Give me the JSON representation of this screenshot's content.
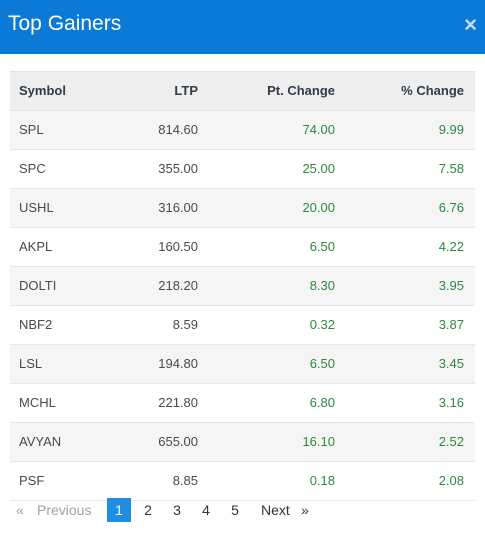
{
  "header": {
    "title": "Top Gainers",
    "close_icon": "×"
  },
  "table": {
    "columns": [
      "Symbol",
      "LTP",
      "Pt. Change",
      "% Change"
    ],
    "rows": [
      {
        "symbol": "SPL",
        "ltp": "814.60",
        "pt_change": "74.00",
        "pct_change": "9.99"
      },
      {
        "symbol": "SPC",
        "ltp": "355.00",
        "pt_change": "25.00",
        "pct_change": "7.58"
      },
      {
        "symbol": "USHL",
        "ltp": "316.00",
        "pt_change": "20.00",
        "pct_change": "6.76"
      },
      {
        "symbol": "AKPL",
        "ltp": "160.50",
        "pt_change": "6.50",
        "pct_change": "4.22"
      },
      {
        "symbol": "DOLTI",
        "ltp": "218.20",
        "pt_change": "8.30",
        "pct_change": "3.95"
      },
      {
        "symbol": "NBF2",
        "ltp": "8.59",
        "pt_change": "0.32",
        "pct_change": "3.87"
      },
      {
        "symbol": "LSL",
        "ltp": "194.80",
        "pt_change": "6.50",
        "pct_change": "3.45"
      },
      {
        "symbol": "MCHL",
        "ltp": "221.80",
        "pt_change": "6.80",
        "pct_change": "3.16"
      },
      {
        "symbol": "AVYAN",
        "ltp": "655.00",
        "pt_change": "16.10",
        "pct_change": "2.52"
      },
      {
        "symbol": "PSF",
        "ltp": "8.85",
        "pt_change": "0.18",
        "pct_change": "2.08"
      }
    ]
  },
  "pagination": {
    "first_icon": "«",
    "previous_label": "Previous",
    "pages": [
      "1",
      "2",
      "3",
      "4",
      "5"
    ],
    "current_page": "1",
    "next_label": "Next",
    "last_icon": "»"
  },
  "colors": {
    "header_bg": "#0a7ad6",
    "positive": "#2b8a3e",
    "active_page": "#1f8de0"
  }
}
